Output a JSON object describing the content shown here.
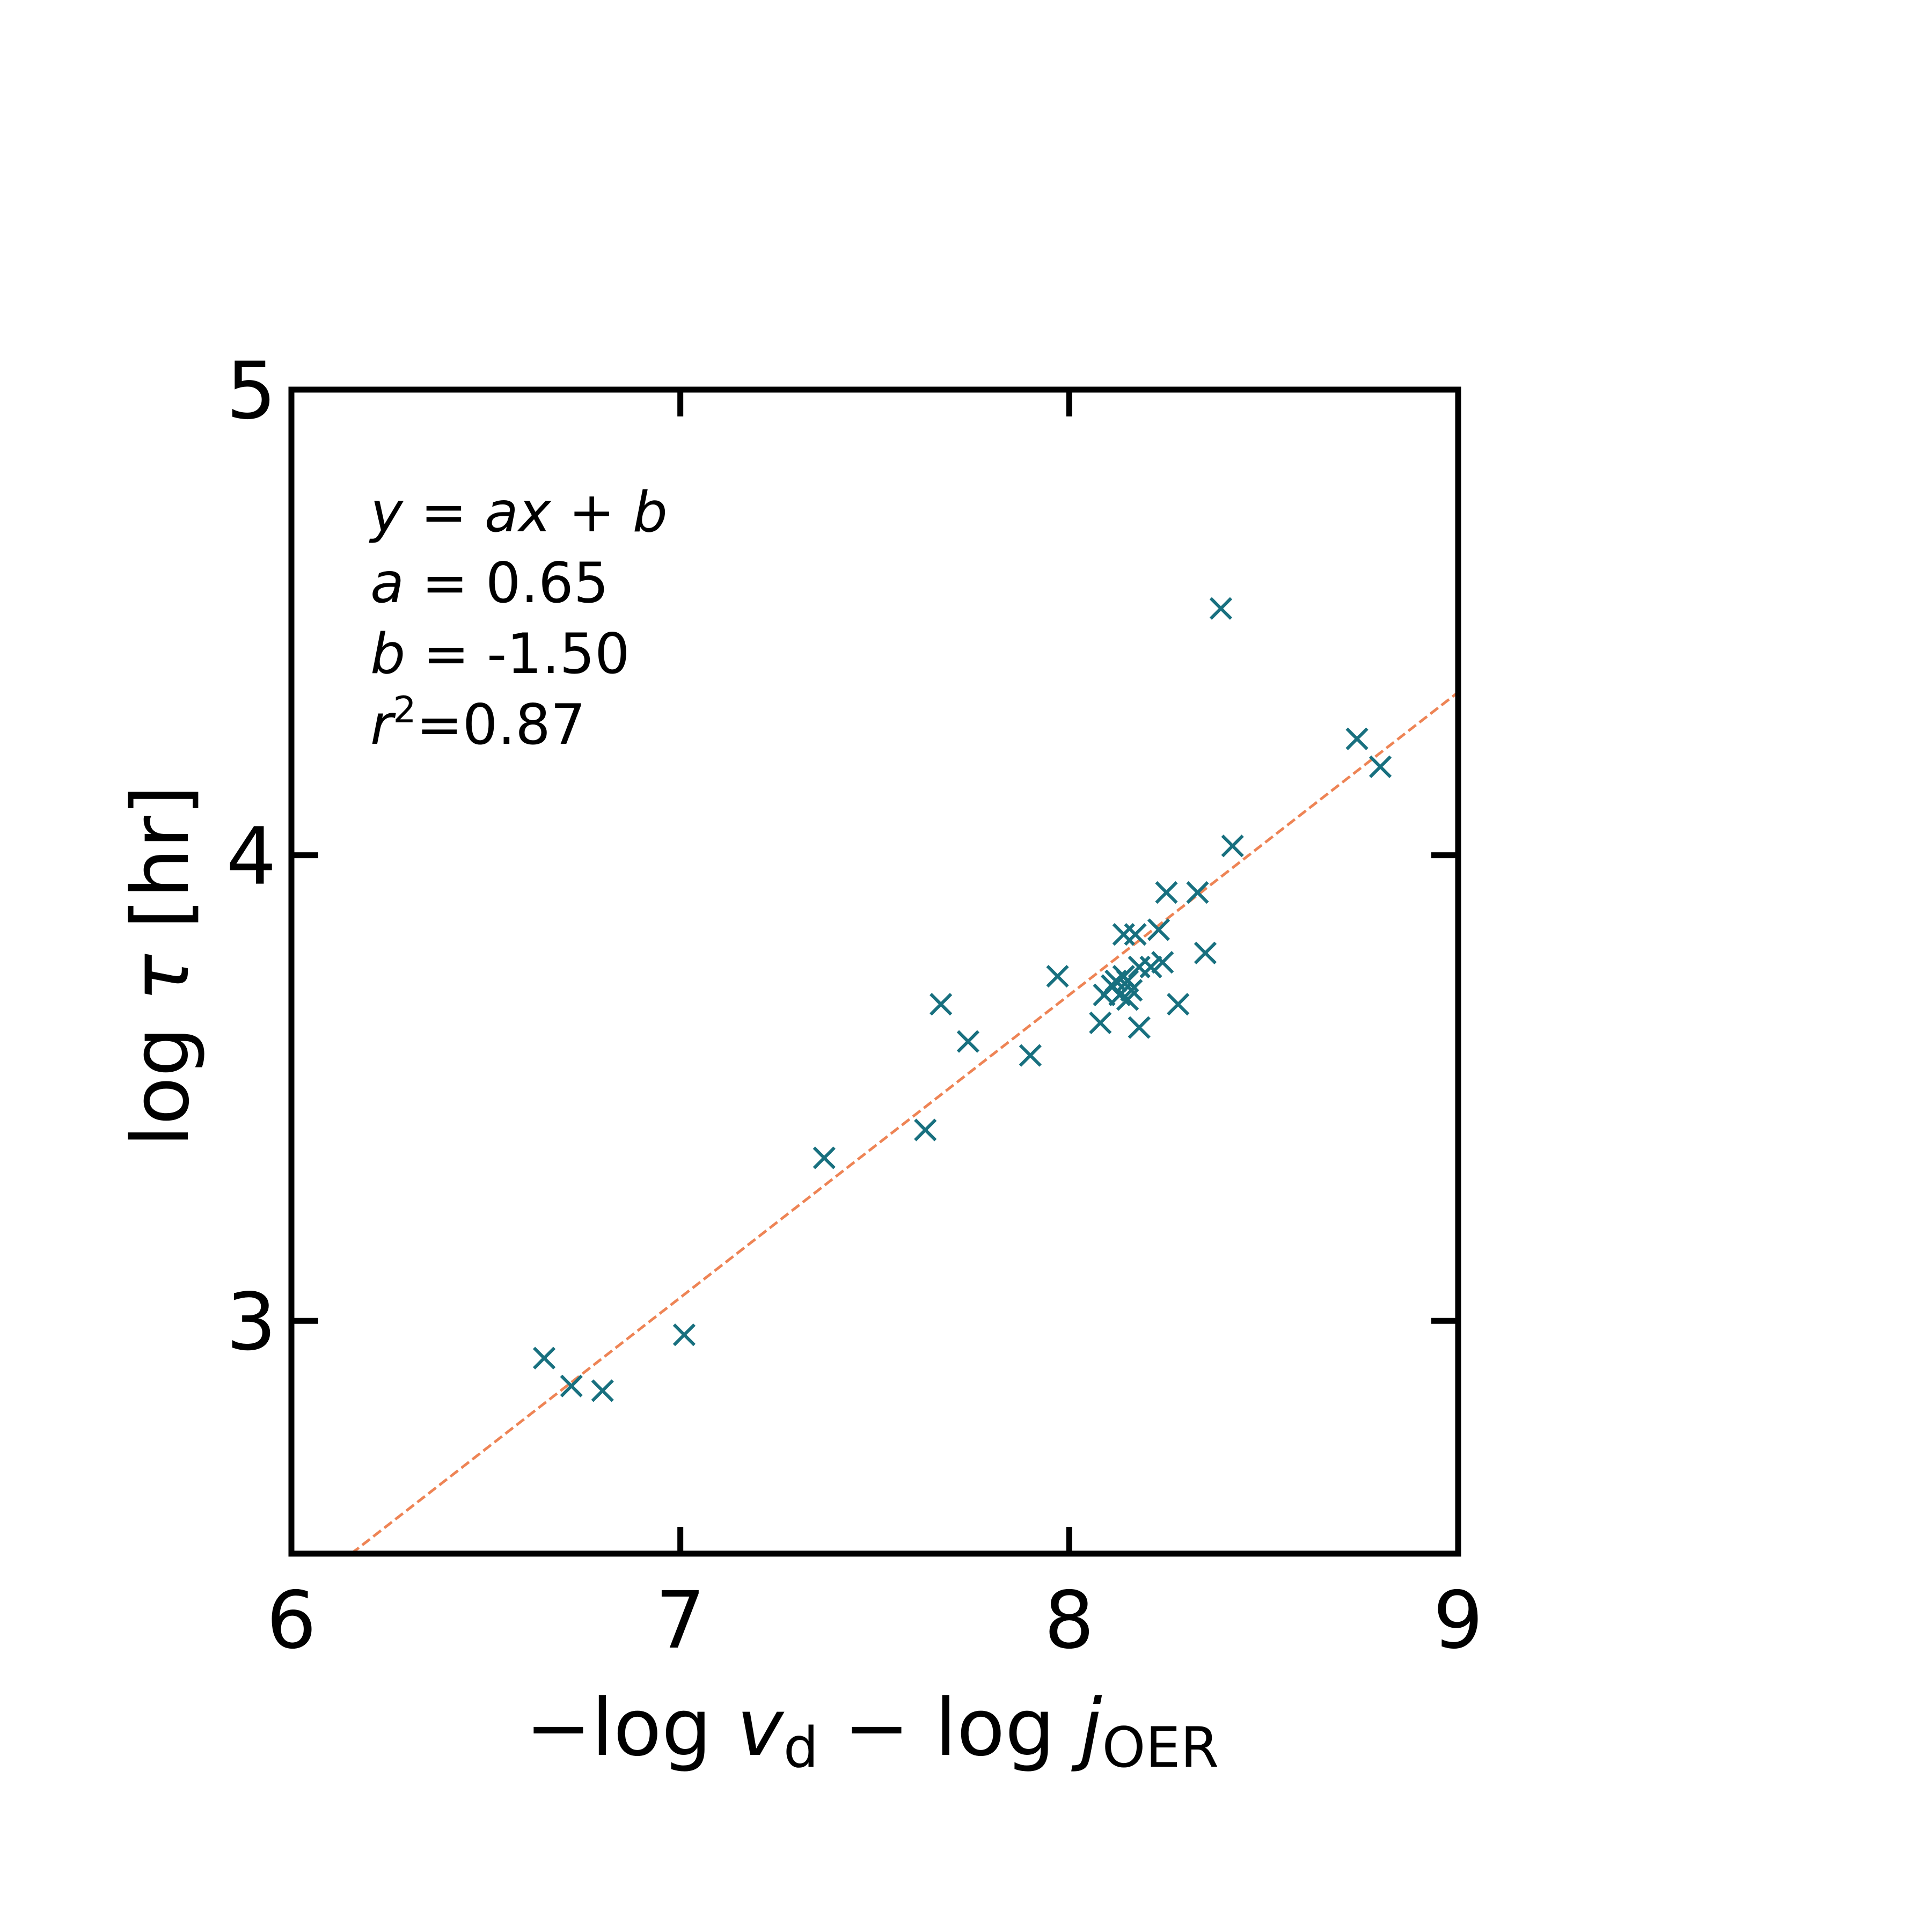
{
  "chart_data": {
    "type": "scatter",
    "title": "",
    "xlabel": "−log v_d − log j_OER",
    "ylabel": "log τ [hr]",
    "xlim": [
      6,
      9
    ],
    "ylim": [
      2.5,
      5
    ],
    "xticks": [
      "6",
      "7",
      "8",
      "9"
    ],
    "yticks": [
      "3",
      "4",
      "5"
    ],
    "grid": false,
    "marker": "x",
    "colors": {
      "points": "#18707f",
      "fit": "#ee8455",
      "axes": "#000000"
    },
    "series": [
      {
        "x": [
          6.65,
          6.72,
          6.8,
          7.01,
          7.37,
          7.63,
          7.67,
          7.74,
          7.9,
          7.97,
          8.08,
          8.09,
          8.11,
          8.12,
          8.13,
          8.14,
          8.14,
          8.15,
          8.15,
          8.16,
          8.17,
          8.18,
          8.18,
          8.21,
          8.23,
          8.24,
          8.25,
          8.28,
          8.33,
          8.35,
          8.39,
          8.42,
          8.74,
          8.8
        ],
        "y": [
          2.92,
          2.86,
          2.85,
          2.97,
          3.35,
          3.41,
          3.68,
          3.6,
          3.57,
          3.74,
          3.64,
          3.7,
          3.72,
          3.73,
          3.7,
          3.74,
          3.83,
          3.69,
          3.73,
          3.71,
          3.83,
          3.76,
          3.63,
          3.76,
          3.84,
          3.77,
          3.92,
          3.68,
          3.92,
          3.79,
          4.53,
          4.02,
          4.25,
          4.19
        ]
      }
    ],
    "fit": {
      "a": 0.65,
      "b": -1.5,
      "style": "dashed"
    },
    "annotations": {
      "equation": "y = ax + b",
      "a_label": "a",
      "a_value": " = 0.65",
      "b_label": "b",
      "b_value": " = -1.50",
      "r_label": "r",
      "r_sup": "2",
      "r_value": "=0.87"
    }
  }
}
